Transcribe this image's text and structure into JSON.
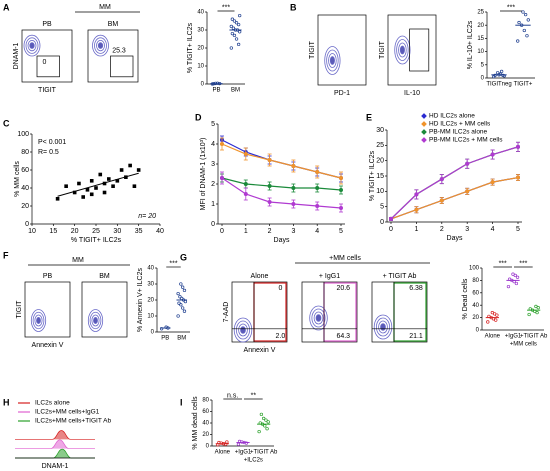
{
  "chart_data": [
    {
      "type": "flow",
      "panel": "A",
      "header": "MM",
      "panels": [
        {
          "title": "PB",
          "ylabel": "DNAM-1",
          "xlabel": "TIGIT",
          "annotations": [
            "0"
          ]
        },
        {
          "title": "BM",
          "annotations": [
            "25.3"
          ]
        }
      ]
    },
    {
      "type": "dot",
      "ylabel": "% TIGIT+ ILC2s",
      "ylim": [
        0,
        40
      ],
      "yticks": [
        0,
        10,
        20,
        30,
        40
      ],
      "significance": [
        "***"
      ],
      "series": [
        {
          "name": "PB",
          "color": "#1f3f8f",
          "values": [
            0,
            0.2,
            0.4,
            0.3,
            0.1
          ],
          "median": 0.2
        },
        {
          "name": "BM",
          "color": "#1f3f8f",
          "values": [
            20,
            22,
            25,
            27,
            28,
            29,
            30,
            30,
            31,
            32,
            33,
            34,
            35,
            36,
            38
          ],
          "median": 30
        }
      ]
    },
    {
      "type": "flow",
      "panel": "B",
      "panels": [
        {
          "ylabel": "TIGIT",
          "xlabel": "PD-1",
          "annotations": []
        },
        {
          "ylabel": "TIGIT",
          "xlabel": "IL-10",
          "annotations": []
        }
      ]
    },
    {
      "type": "dot",
      "ylabel": "% IL-10+ ILC2s",
      "ylim": [
        0,
        25
      ],
      "yticks": [
        0,
        5,
        10,
        15,
        20,
        25
      ],
      "significance": [
        "***"
      ],
      "series": [
        {
          "name": "TIGITneg",
          "color": "#1f3f8f",
          "values": [
            0.5,
            1,
            1.5,
            2,
            1,
            0.8,
            2.5,
            1.2
          ],
          "median": 1.2
        },
        {
          "name": "TIGIT+",
          "color": "#1f3f8f",
          "values": [
            14,
            16,
            18,
            20,
            21,
            22,
            24,
            25
          ],
          "median": 20
        }
      ]
    },
    {
      "type": "scatter",
      "panel": "C",
      "xlabel": "% TIGIT+ ILC2s",
      "ylabel": "% MM cells",
      "annotations": [
        "P< 0.001",
        "R= 0.5",
        "n= 20"
      ],
      "color": "#000000",
      "x": [
        16,
        18,
        20,
        21,
        22,
        23,
        24,
        24,
        25,
        26,
        27,
        27,
        28,
        29,
        30,
        31,
        32,
        33,
        34,
        35
      ],
      "values": [
        28,
        42,
        35,
        45,
        30,
        38,
        48,
        33,
        40,
        55,
        45,
        35,
        50,
        42,
        48,
        60,
        52,
        65,
        42,
        60
      ],
      "xlim": [
        10,
        40
      ],
      "xticks": [
        10,
        15,
        20,
        25,
        30,
        35,
        40
      ],
      "ylim": [
        0,
        100
      ],
      "yticks": [
        0,
        20,
        40,
        60,
        80,
        100
      ]
    },
    {
      "type": "line",
      "panel": "D",
      "xlabel": "Days",
      "ylabel": "MFI of DNAM-1 (1x10³)",
      "x": [
        0,
        1,
        2,
        3,
        4,
        5
      ],
      "xlim": [
        0,
        5
      ],
      "xticks": [
        0,
        1,
        2,
        3,
        4,
        5
      ],
      "ylim": [
        0,
        5
      ],
      "yticks": [
        0,
        1,
        2,
        3,
        4,
        5
      ],
      "series": [
        {
          "name": "HD ILC2s alone",
          "color": "#2b2bd1",
          "values": [
            4.2,
            3.6,
            3.2,
            2.9,
            2.6,
            2.3
          ],
          "errors": [
            0.2,
            0.2,
            0.2,
            0.2,
            0.2,
            0.2
          ]
        },
        {
          "name": "HD ILC2s + MM cells",
          "color": "#f0932b",
          "values": [
            4.0,
            3.5,
            3.2,
            2.9,
            2.6,
            2.3
          ],
          "errors": [
            0.3,
            0.3,
            0.3,
            0.3,
            0.3,
            0.3
          ]
        },
        {
          "name": "PB-MM ILC2s alone",
          "color": "#1a8a3a",
          "values": [
            2.3,
            2.0,
            1.9,
            1.8,
            1.8,
            1.7
          ],
          "errors": [
            0.2,
            0.2,
            0.2,
            0.2,
            0.2,
            0.2
          ]
        },
        {
          "name": "PB-MM ILC2s + MM cells",
          "color": "#b03ad1",
          "values": [
            2.3,
            1.5,
            1.1,
            1.0,
            0.9,
            0.8
          ],
          "errors": [
            0.3,
            0.3,
            0.2,
            0.2,
            0.2,
            0.2
          ]
        }
      ]
    },
    {
      "type": "line",
      "panel": "E",
      "xlabel": "Days",
      "ylabel": "% TIGIT+ ILC2s",
      "legend": "top-right",
      "x": [
        0,
        1,
        2,
        3,
        4,
        5
      ],
      "xlim": [
        0,
        5
      ],
      "xticks": [
        0,
        1,
        2,
        3,
        4,
        5
      ],
      "ylim": [
        0,
        30
      ],
      "yticks": [
        0,
        5,
        10,
        15,
        20,
        25,
        30
      ],
      "series": [
        {
          "name": "HD ILC2s alone",
          "color": "#2b2bd1",
          "values": [
            1,
            4,
            7,
            10,
            13,
            14.5
          ],
          "errors": [
            0.5,
            1,
            1,
            1,
            1,
            1
          ]
        },
        {
          "name": "HD ILC2s + MM cells",
          "color": "#f0932b",
          "values": [
            1,
            4,
            7,
            10,
            13,
            14.5
          ],
          "errors": [
            0.5,
            1,
            1,
            1,
            1,
            1
          ]
        },
        {
          "name": "PB-MM ILC2s alone",
          "color": "#1a8a3a",
          "values": [
            1,
            9,
            14,
            19,
            22,
            24.5
          ],
          "errors": [
            0.5,
            1.5,
            1.5,
            1.5,
            1.5,
            1.5
          ]
        },
        {
          "name": "PB-MM ILC2s + MM cells",
          "color": "#b03ad1",
          "values": [
            1,
            9,
            14,
            19,
            22,
            24.5
          ],
          "errors": [
            0.5,
            1.5,
            1.5,
            1.5,
            1.5,
            1.5
          ]
        }
      ]
    },
    {
      "type": "flow",
      "panel": "F",
      "header": "MM",
      "panels": [
        {
          "title": "PB",
          "ylabel": "TIGIT",
          "xlabel": "Annexin V",
          "annotations": []
        },
        {
          "title": "BM",
          "annotations": []
        }
      ]
    },
    {
      "type": "dot",
      "ylabel": "% Annexin V+ ILC2s",
      "ylim": [
        0,
        40
      ],
      "yticks": [
        0,
        10,
        20,
        30,
        40
      ],
      "significance": [
        "***"
      ],
      "series": [
        {
          "name": "PB",
          "color": "#1f3f8f",
          "values": [
            2,
            2.5,
            3
          ],
          "median": 2.5
        },
        {
          "name": "BM",
          "color": "#1f3f8f",
          "values": [
            10,
            13,
            15,
            17,
            18,
            19,
            20,
            21,
            22,
            24,
            26,
            28,
            30
          ],
          "median": 20
        }
      ]
    },
    {
      "type": "flow",
      "panel": "G",
      "header": "+MM cells",
      "panels": [
        {
          "title": "Alone",
          "ylabel": "7-AAD",
          "xlabel": "Annexin V",
          "color": "#d62020",
          "annotations": [
            "0",
            "2.0"
          ]
        },
        {
          "title": "+ IgG1",
          "color": "#e060d0",
          "annotations": [
            "20.6",
            "64.3"
          ]
        },
        {
          "title": "+ TIGIT Ab",
          "color": "#2aa02a",
          "annotations": [
            "6.38",
            "21.1"
          ]
        }
      ]
    },
    {
      "type": "dot",
      "ylabel": "% Dead cells",
      "footer": "+MM cells",
      "ylim": [
        0,
        100
      ],
      "yticks": [
        0,
        20,
        40,
        60,
        80,
        100
      ],
      "significance": [
        "***",
        "***"
      ],
      "series": [
        {
          "name": "Alone",
          "color": "#d62020",
          "values": [
            13,
            16,
            18,
            20,
            22,
            24,
            26,
            28
          ],
          "median": 20
        },
        {
          "name": "+IgG1",
          "color": "#9933cc",
          "values": [
            70,
            75,
            78,
            80,
            82,
            85,
            88,
            90
          ],
          "median": 80
        },
        {
          "name": "+TIGIT Ab",
          "color": "#2aa02a",
          "values": [
            25,
            28,
            30,
            32,
            34,
            36,
            38
          ],
          "median": 32
        }
      ]
    },
    {
      "type": "histogram",
      "panel": "H",
      "xlabel": "DNAM-1",
      "series": [
        {
          "name": "ILC2s alone",
          "color": "#d62020"
        },
        {
          "name": "ILC2s+MM cells+IgG1",
          "color": "#e060d0"
        },
        {
          "name": "ILC2s+MM cells+TIGIT Ab",
          "color": "#2aa02a"
        }
      ]
    },
    {
      "type": "dot",
      "panel": "I",
      "ylabel": "% MM dead cells",
      "footer": "+ILC2s",
      "ylim": [
        0,
        80
      ],
      "yticks": [
        0,
        20,
        40,
        60,
        80
      ],
      "significance": [
        "n.s.",
        "**"
      ],
      "series": [
        {
          "name": "Alone",
          "color": "#d62020",
          "values": [
            2,
            3,
            4,
            5,
            6,
            7
          ],
          "median": 4
        },
        {
          "name": "+IgG1",
          "color": "#9933cc",
          "values": [
            3,
            5,
            6,
            7,
            8
          ],
          "median": 6
        },
        {
          "name": "+TIGIT Ab",
          "color": "#2aa02a",
          "values": [
            25,
            30,
            35,
            38,
            40,
            42,
            45,
            48,
            55
          ],
          "median": 38
        }
      ]
    }
  ]
}
